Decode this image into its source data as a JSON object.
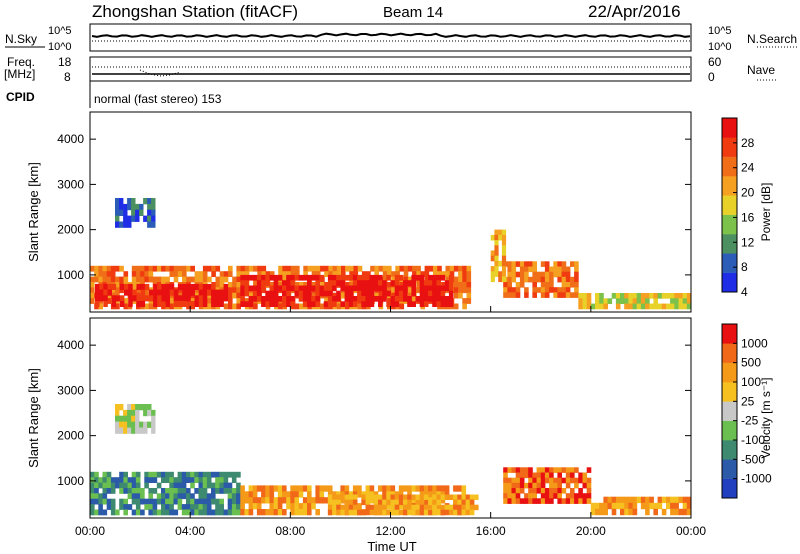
{
  "header": {
    "station": "Zhongshan Station (fitACF)",
    "beam": "Beam 14",
    "date": "22/Apr/2016"
  },
  "status_panels": {
    "nsky_label": "N.Sky",
    "nsearch_label": "N.Search",
    "left_ticks_top": [
      "10^5",
      "10^0"
    ],
    "right_ticks_top": [
      "10^5",
      "10^0"
    ],
    "freq_label": "Freq.",
    "freq_unit": "[MHz]",
    "freq_ticks": [
      "18",
      "8"
    ],
    "nave_label": "Nave",
    "nave_ticks": [
      "60",
      "0"
    ],
    "cpid_label": "CPID",
    "cpid_text": "normal (fast stereo) 153"
  },
  "axes": {
    "ylabel": "Slant Range [km]",
    "xlabel": "Time UT",
    "y_ticks": [
      "4000",
      "3000",
      "2000",
      "1000"
    ],
    "x_ticks": [
      "00:00",
      "04:00",
      "08:00",
      "12:00",
      "16:00",
      "20:00",
      "00:00"
    ]
  },
  "colors": {
    "power": [
      "#1f2ee6",
      "#2a5cb8",
      "#4c8f60",
      "#7cc24a",
      "#e8d22a",
      "#f5a020",
      "#f06e18",
      "#f03a10",
      "#e81010"
    ],
    "velocity": [
      "#2040c0",
      "#2a5aa8",
      "#3d8a70",
      "#6bbf50",
      "#c8c8c8",
      "#f5c020",
      "#f59a18",
      "#f06818",
      "#e81010"
    ]
  },
  "chart_data": [
    {
      "type": "heatmap",
      "panel": "power",
      "xlabel": "Time UT",
      "ylabel": "Slant Range [km]",
      "xlim_hours": [
        0,
        24
      ],
      "ylim_km": [
        180,
        4600
      ],
      "colorbar_label": "Power [dB]",
      "colorbar_ticks": [
        "28",
        "24",
        "20",
        "16",
        "12",
        "8",
        "4"
      ],
      "regions": [
        {
          "t0": 0.0,
          "t1": 15.2,
          "r0": 250,
          "r1": 1200,
          "level": 6
        },
        {
          "t0": 0.2,
          "t1": 5.5,
          "r0": 300,
          "r1": 800,
          "level": 8
        },
        {
          "t0": 6.0,
          "t1": 14.5,
          "r0": 300,
          "r1": 1000,
          "level": 8
        },
        {
          "t0": 16.5,
          "t1": 19.5,
          "r0": 500,
          "r1": 1300,
          "level": 6
        },
        {
          "t0": 1.0,
          "t1": 2.6,
          "r0": 2050,
          "r1": 2700,
          "level": 1
        },
        {
          "t0": 16.0,
          "t1": 16.6,
          "r0": 850,
          "r1": 2000,
          "level": 5
        },
        {
          "t0": 19.5,
          "t1": 24.0,
          "r0": 250,
          "r1": 600,
          "level": 4
        }
      ]
    },
    {
      "type": "heatmap",
      "panel": "velocity",
      "xlabel": "Time UT",
      "ylabel": "Slant Range [km]",
      "xlim_hours": [
        0,
        24
      ],
      "ylim_km": [
        180,
        4600
      ],
      "colorbar_label": "Velocity [m s⁻¹]",
      "colorbar_ticks": [
        "1000",
        "500",
        "100",
        "25",
        "-25",
        "-100",
        "-500",
        "-1000"
      ],
      "regions": [
        {
          "t0": 0.0,
          "t1": 6.0,
          "r0": 250,
          "r1": 1200,
          "level": 2
        },
        {
          "t0": 6.0,
          "t1": 15.0,
          "r0": 250,
          "r1": 900,
          "level": 6
        },
        {
          "t0": 9.5,
          "t1": 15.5,
          "r0": 250,
          "r1": 700,
          "level": 6
        },
        {
          "t0": 16.5,
          "t1": 20.0,
          "r0": 500,
          "r1": 1300,
          "level": 7
        },
        {
          "t0": 1.0,
          "t1": 2.6,
          "r0": 2050,
          "r1": 2700,
          "level": 4
        },
        {
          "t0": 20.0,
          "t1": 24.0,
          "r0": 250,
          "r1": 650,
          "level": 6
        }
      ]
    }
  ]
}
